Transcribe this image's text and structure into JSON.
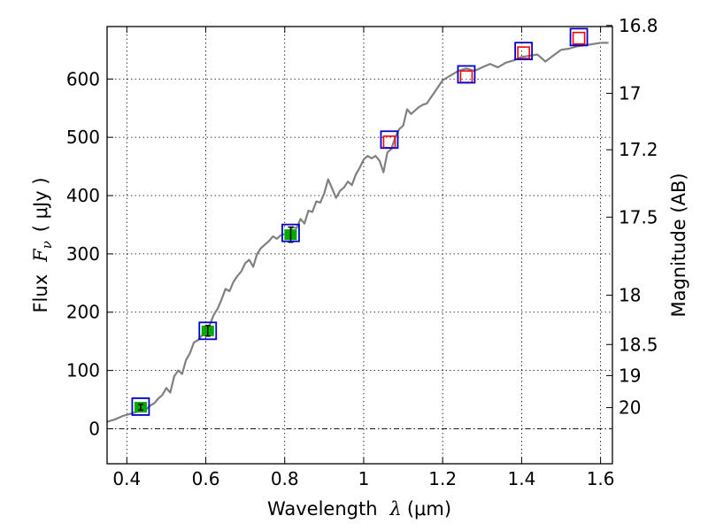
{
  "chart_data": {
    "type": "scatter",
    "title": "",
    "xlabel": "Wavelength  λ (μm)",
    "xlabel_parts": {
      "text": "Wavelength",
      "symbol": "λ",
      "unit": "(μm)"
    },
    "ylabel": "Flux  Fν  ( μJy )",
    "ylabel_parts": {
      "text": "Flux",
      "symbol": "F",
      "subscript": "ν",
      "unit": "( μJy )"
    },
    "y2label": "Magnitude (AB)",
    "xlim": [
      0.35,
      1.63
    ],
    "ylim": [
      -60,
      690
    ],
    "grid": true,
    "x_ticks": [
      0.4,
      0.6,
      0.8,
      1.0,
      1.2,
      1.4,
      1.6
    ],
    "x_tick_labels": [
      "0.4",
      "0.6",
      "0.8",
      "1",
      "1.2",
      "1.4",
      "1.6"
    ],
    "y_ticks": [
      0,
      100,
      200,
      300,
      400,
      500,
      600
    ],
    "y_tick_labels": [
      "0",
      "100",
      "200",
      "300",
      "400",
      "500",
      "600"
    ],
    "mag_ticks": [
      16.8,
      17,
      17.2,
      17.5,
      18,
      18.5,
      19,
      20
    ],
    "mag_tick_labels": [
      "16.8",
      "17",
      "17.2",
      "17.5",
      "18",
      "18.5",
      "19",
      "20"
    ],
    "zero_line": true,
    "colors": {
      "spectrum": "#808080",
      "model_box": "#0000cc",
      "observed_fill": "#00aa00",
      "upper_box": "#ff0000",
      "grid": "#000000"
    },
    "series": [
      {
        "name": "model spectrum",
        "type": "line",
        "x": [
          0.35,
          0.37,
          0.39,
          0.41,
          0.43,
          0.45,
          0.46,
          0.47,
          0.48,
          0.49,
          0.5,
          0.51,
          0.52,
          0.53,
          0.54,
          0.55,
          0.56,
          0.57,
          0.58,
          0.59,
          0.6,
          0.61,
          0.62,
          0.63,
          0.64,
          0.65,
          0.66,
          0.67,
          0.68,
          0.69,
          0.7,
          0.71,
          0.72,
          0.73,
          0.74,
          0.75,
          0.76,
          0.77,
          0.78,
          0.79,
          0.8,
          0.81,
          0.82,
          0.83,
          0.84,
          0.85,
          0.86,
          0.87,
          0.88,
          0.89,
          0.9,
          0.91,
          0.92,
          0.93,
          0.94,
          0.95,
          0.96,
          0.97,
          0.98,
          0.99,
          1.0,
          1.01,
          1.02,
          1.03,
          1.04,
          1.05,
          1.06,
          1.07,
          1.08,
          1.09,
          1.1,
          1.11,
          1.12,
          1.13,
          1.14,
          1.15,
          1.16,
          1.18,
          1.2,
          1.22,
          1.24,
          1.26,
          1.28,
          1.3,
          1.32,
          1.34,
          1.36,
          1.38,
          1.4,
          1.42,
          1.44,
          1.46,
          1.48,
          1.5,
          1.52,
          1.54,
          1.56,
          1.58,
          1.6,
          1.62
        ],
        "values": [
          12,
          16,
          22,
          26,
          30,
          34,
          40,
          44,
          52,
          58,
          70,
          62,
          90,
          100,
          94,
          118,
          130,
          148,
          152,
          160,
          172,
          178,
          195,
          206,
          222,
          240,
          236,
          252,
          262,
          270,
          284,
          290,
          278,
          300,
          310,
          316,
          322,
          330,
          326,
          332,
          334,
          338,
          346,
          344,
          360,
          352,
          374,
          372,
          390,
          388,
          404,
          428,
          412,
          396,
          408,
          414,
          424,
          418,
          436,
          448,
          462,
          468,
          464,
          468,
          460,
          440,
          474,
          480,
          500,
          514,
          520,
          548,
          540,
          546,
          552,
          556,
          558,
          578,
          598,
          606,
          614,
          618,
          614,
          620,
          626,
          620,
          628,
          632,
          638,
          640,
          642,
          630,
          640,
          650,
          652,
          656,
          658,
          660,
          662,
          662
        ]
      },
      {
        "name": "model photometry",
        "type": "scatter",
        "marker": "open-square",
        "x": [
          0.435,
          0.605,
          0.815,
          1.065,
          1.26,
          1.405,
          1.545
        ],
        "values": [
          38,
          168,
          336,
          496,
          608,
          648,
          672
        ]
      },
      {
        "name": "observed photometry",
        "type": "scatter",
        "marker": "filled-circle-errorbar",
        "x": [
          0.435,
          0.605,
          0.815
        ],
        "values": [
          37,
          168,
          333
        ],
        "errors": [
          5,
          9,
          13
        ]
      },
      {
        "name": "upper limits",
        "type": "scatter",
        "marker": "open-square-small",
        "x": [
          1.065,
          1.26,
          1.405,
          1.545
        ],
        "values": [
          492,
          604,
          645,
          670
        ]
      }
    ]
  }
}
